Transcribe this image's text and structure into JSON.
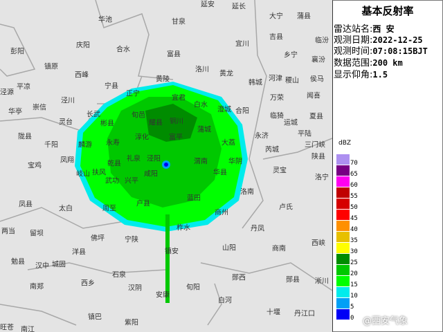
{
  "panel": {
    "title": "基本反射率",
    "rows": [
      {
        "label": "雷达站名:",
        "value": "西 安"
      },
      {
        "label": "观测日期:",
        "value": "2022-12-25"
      },
      {
        "label": "观测时间:",
        "value": "07:08:15BJT"
      },
      {
        "label": "数据范围:",
        "value": "200 km"
      },
      {
        "label": "显示仰角:",
        "value": "1.5"
      }
    ]
  },
  "legend": {
    "unit": "dBZ",
    "levels": [
      {
        "value": "70",
        "color": "#ad90f0"
      },
      {
        "value": "65",
        "color": "#780084"
      },
      {
        "value": "60",
        "color": "#ff00f0"
      },
      {
        "value": "55",
        "color": "#c00000"
      },
      {
        "value": "50",
        "color": "#d60000"
      },
      {
        "value": "45",
        "color": "#ff0000"
      },
      {
        "value": "40",
        "color": "#ff9000"
      },
      {
        "value": "35",
        "color": "#e7c000"
      },
      {
        "value": "30",
        "color": "#ffff00"
      },
      {
        "value": "25",
        "color": "#008c00"
      },
      {
        "value": "20",
        "color": "#00c800"
      },
      {
        "value": "15",
        "color": "#00ff00"
      },
      {
        "value": "10",
        "color": "#00ecec"
      },
      {
        "value": "5",
        "color": "#00a0f6"
      },
      {
        "value": "0",
        "color": "#0000f6"
      }
    ]
  },
  "watermark": "@西安气象",
  "cities": [
    "华池",
    "庆阳",
    "合水",
    "彭阳",
    "镇原",
    "西峰",
    "宁县",
    "黄陵",
    "平凉",
    "泾源",
    "正宁",
    "泾川",
    "华亭",
    "崇信",
    "长武",
    "旬邑",
    "灵台",
    "彬县",
    "耀县",
    "陇县",
    "千阳",
    "麟游",
    "永寿",
    "淳化",
    "凤翔",
    "宝鸡",
    "乾县",
    "礼泉",
    "泾阳",
    "延安",
    "延长",
    "甘泉",
    "大宁",
    "蒲县",
    "吉县",
    "临汾",
    "宜川",
    "富县",
    "乡宁",
    "襄汾",
    "洛川",
    "黄龙",
    "河津",
    "稷山",
    "侯马",
    "韩城",
    "万荣",
    "闻喜",
    "宜君",
    "白水",
    "澄城",
    "合阳",
    "临猗",
    "夏县",
    "运城",
    "铜川",
    "蒲城",
    "永济",
    "平陆",
    "富平",
    "大荔",
    "三门峡",
    "芮城",
    "陕县",
    "渭南",
    "华阴",
    "岐山",
    "扶风",
    "武功",
    "兴平",
    "咸阳",
    "凤县",
    "太白",
    "周至",
    "户县",
    "两当",
    "留坝",
    "佛坪",
    "宁陕",
    "洋县",
    "勉县",
    "汉中",
    "城固",
    "石泉",
    "汉阴",
    "南郑",
    "西乡",
    "安康",
    "镇巴",
    "紫阳",
    "旺苍",
    "南江",
    "华县",
    "灵宝",
    "洛宁",
    "蓝田",
    "洛南",
    "卢氏",
    "商州",
    "柞水",
    "丹凤",
    "西峡",
    "镇安",
    "山阳",
    "商南",
    "郧西",
    "郧县",
    "淅川",
    "旬阳",
    "白河",
    "十堰",
    "丹江口"
  ]
}
